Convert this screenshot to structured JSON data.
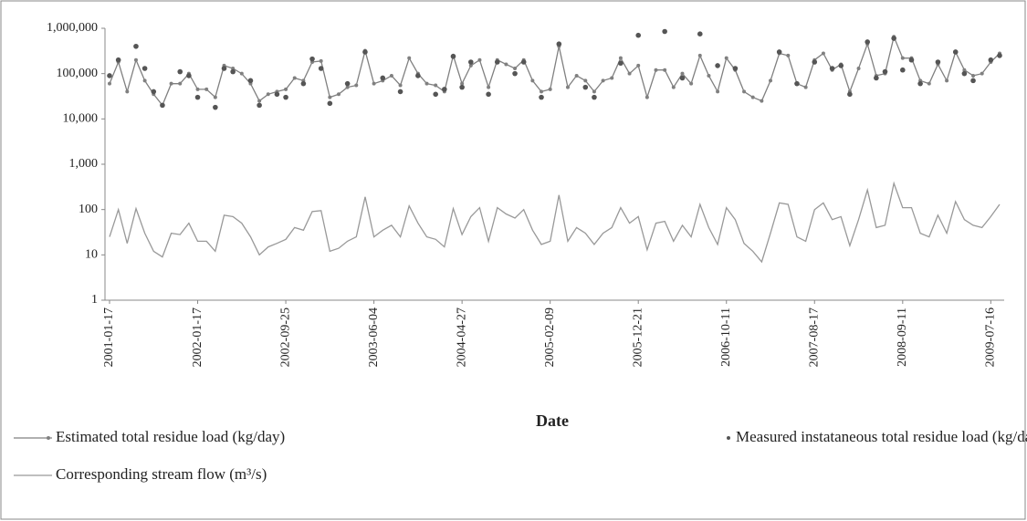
{
  "chart_data": {
    "type": "line",
    "xlabel": "Date",
    "log_scale_y": true,
    "ylim": [
      1,
      1000000
    ],
    "yticks": [
      1,
      10,
      100,
      {
        "value": 1000,
        "label": "1,000"
      },
      {
        "value": 10000,
        "label": "10,000"
      },
      {
        "value": 100000,
        "label": "100,000"
      },
      {
        "value": 1000000,
        "label": "1,000,000"
      }
    ],
    "categories": [
      "2001-01-17",
      null,
      null,
      null,
      null,
      null,
      null,
      null,
      null,
      null,
      "2002-01-17",
      null,
      null,
      null,
      null,
      null,
      null,
      null,
      null,
      null,
      "2002-09-25",
      null,
      null,
      null,
      null,
      null,
      null,
      null,
      null,
      null,
      "2003-06-04",
      null,
      null,
      null,
      null,
      null,
      null,
      null,
      null,
      null,
      "2004-04-27",
      null,
      null,
      null,
      null,
      null,
      null,
      null,
      null,
      null,
      "2005-02-09",
      null,
      null,
      null,
      null,
      null,
      null,
      null,
      null,
      null,
      "2005-12-21",
      null,
      null,
      null,
      null,
      null,
      null,
      null,
      null,
      null,
      "2006-10-11",
      null,
      null,
      null,
      null,
      null,
      null,
      null,
      null,
      null,
      "2007-08-17",
      null,
      null,
      null,
      null,
      null,
      null,
      null,
      null,
      null,
      "2008-09-11",
      null,
      null,
      null,
      null,
      null,
      null,
      null,
      null,
      null,
      "2009-07-16",
      null
    ],
    "series": [
      {
        "name": "Estimated total residue load (kg/day)",
        "color": "#808080",
        "mode": "lines+markers",
        "values": [
          60000,
          180000,
          40000,
          200000,
          70000,
          35000,
          20000,
          60000,
          60000,
          100000,
          45000,
          45000,
          30000,
          150000,
          130000,
          100000,
          60000,
          25000,
          35000,
          40000,
          45000,
          80000,
          70000,
          180000,
          190000,
          30000,
          35000,
          50000,
          55000,
          320000,
          60000,
          70000,
          90000,
          55000,
          220000,
          100000,
          60000,
          55000,
          40000,
          250000,
          60000,
          150000,
          200000,
          50000,
          200000,
          160000,
          130000,
          200000,
          70000,
          40000,
          45000,
          400000,
          50000,
          90000,
          70000,
          40000,
          70000,
          80000,
          220000,
          100000,
          150000,
          30000,
          120000,
          120000,
          50000,
          100000,
          60000,
          250000,
          90000,
          40000,
          220000,
          120000,
          40000,
          30000,
          25000,
          70000,
          280000,
          250000,
          60000,
          50000,
          200000,
          280000,
          120000,
          160000,
          40000,
          130000,
          450000,
          90000,
          100000,
          650000,
          220000,
          220000,
          70000,
          60000,
          160000,
          70000,
          300000,
          120000,
          90000,
          100000,
          180000,
          280000
        ]
      },
      {
        "name": "Measured instataneous total residue load (kg/day)",
        "color": "#555555",
        "mode": "markers",
        "values": [
          90000,
          200000,
          null,
          400000,
          130000,
          40000,
          20000,
          null,
          110000,
          90000,
          30000,
          null,
          18000,
          130000,
          110000,
          null,
          70000,
          20000,
          null,
          35000,
          30000,
          null,
          60000,
          210000,
          130000,
          22000,
          null,
          60000,
          null,
          300000,
          null,
          80000,
          null,
          40000,
          null,
          90000,
          null,
          35000,
          45000,
          240000,
          50000,
          180000,
          null,
          35000,
          180000,
          null,
          100000,
          180000,
          null,
          30000,
          null,
          450000,
          null,
          null,
          50000,
          30000,
          null,
          null,
          170000,
          null,
          700000,
          null,
          null,
          850000,
          null,
          80000,
          null,
          750000,
          null,
          150000,
          null,
          130000,
          null,
          null,
          null,
          null,
          300000,
          null,
          60000,
          null,
          180000,
          null,
          130000,
          150000,
          35000,
          null,
          500000,
          80000,
          110000,
          600000,
          120000,
          200000,
          60000,
          null,
          180000,
          null,
          300000,
          100000,
          70000,
          null,
          200000,
          250000
        ]
      },
      {
        "name": "Corresponding stream flow (m³/s)",
        "color": "#999999",
        "mode": "lines",
        "values": [
          25,
          100,
          18,
          105,
          30,
          12,
          9,
          30,
          28,
          50,
          20,
          20,
          12,
          75,
          70,
          50,
          25,
          10,
          15,
          18,
          22,
          40,
          35,
          90,
          95,
          12,
          14,
          20,
          25,
          190,
          25,
          35,
          45,
          25,
          120,
          50,
          25,
          22,
          15,
          105,
          28,
          70,
          110,
          20,
          110,
          80,
          65,
          100,
          35,
          17,
          20,
          210,
          20,
          40,
          30,
          17,
          30,
          40,
          110,
          50,
          70,
          13,
          50,
          55,
          20,
          45,
          25,
          130,
          40,
          17,
          110,
          60,
          18,
          12,
          7,
          30,
          140,
          130,
          25,
          20,
          100,
          140,
          60,
          70,
          16,
          60,
          270,
          40,
          45,
          380,
          110,
          110,
          30,
          25,
          75,
          30,
          150,
          60,
          45,
          40,
          70,
          130
        ]
      }
    ]
  }
}
